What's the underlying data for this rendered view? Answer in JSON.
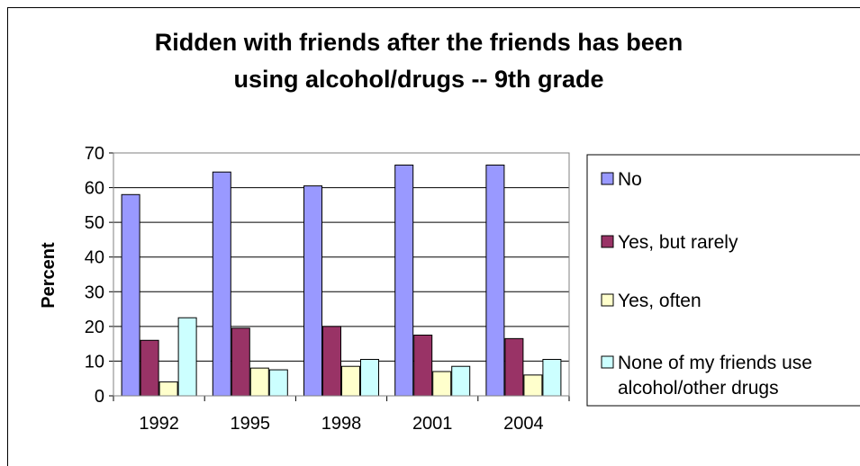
{
  "chart_data": {
    "type": "bar",
    "title_line1": "Ridden with friends after the friends has been",
    "title_line2": "using alcohol/drugs -- 9th grade",
    "ylabel": "Percent",
    "xlabel": "",
    "ylim": [
      0,
      70
    ],
    "yticks": [
      "0",
      "10",
      "20",
      "30",
      "40",
      "50",
      "60",
      "70"
    ],
    "ytick_values": [
      0,
      10,
      20,
      30,
      40,
      50,
      60,
      70
    ],
    "categories": [
      "1992",
      "1995",
      "1998",
      "2001",
      "2004"
    ],
    "grid": true,
    "legend_position": "right",
    "series": [
      {
        "name": "No",
        "color": "#9999ff",
        "values": [
          58,
          64.5,
          60.5,
          66.5,
          66.5
        ]
      },
      {
        "name": "Yes, but rarely",
        "color": "#993366",
        "values": [
          16,
          19.5,
          20,
          17.5,
          16.5
        ]
      },
      {
        "name": "Yes, often",
        "color": "#ffffcc",
        "values": [
          4,
          8,
          8.5,
          7,
          6
        ]
      },
      {
        "name": "None of my friends use alcohol/other drugs",
        "name_line1": "None of my friends use",
        "name_line2": "alcohol/other drugs",
        "color": "#ccffff",
        "values": [
          22.5,
          7.5,
          10.5,
          8.5,
          10.5
        ]
      }
    ]
  }
}
